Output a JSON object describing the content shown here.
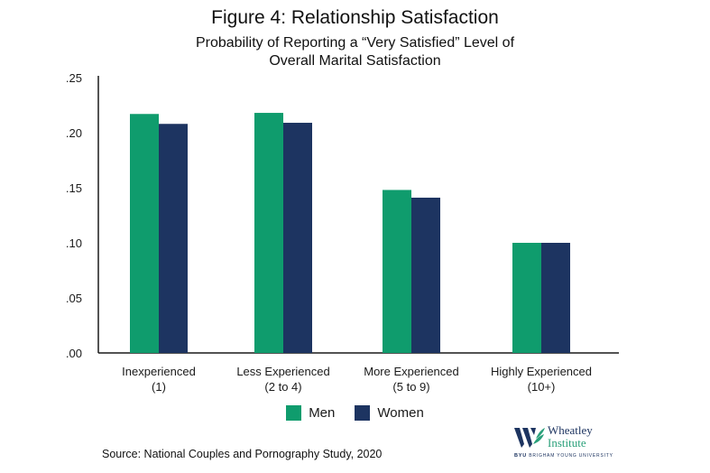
{
  "chart_data": {
    "type": "bar",
    "title": "Figure 4: Relationship Satisfaction",
    "subtitle_lines": [
      "Probability of Reporting a “Very Satisfied” Level of",
      "Overall Marital Satisfaction"
    ],
    "categories": [
      {
        "line1": "Inexperienced",
        "line2": "(1)"
      },
      {
        "line1": "Less Experienced",
        "line2": "(2 to 4)"
      },
      {
        "line1": "More Experienced",
        "line2": "(5 to 9)"
      },
      {
        "line1": "Highly Experienced",
        "line2": "(10+)"
      }
    ],
    "series": [
      {
        "name": "Men",
        "color": "#0f9c6d",
        "values": [
          0.217,
          0.218,
          0.148,
          0.1
        ]
      },
      {
        "name": "Women",
        "color": "#1d3461",
        "values": [
          0.208,
          0.209,
          0.141,
          0.1
        ]
      }
    ],
    "ylim": [
      0,
      0.25
    ],
    "yticks": [
      {
        "value": 0.0,
        "label": ".00"
      },
      {
        "value": 0.05,
        "label": ".05"
      },
      {
        "value": 0.1,
        "label": ".10"
      },
      {
        "value": 0.15,
        "label": ".15"
      },
      {
        "value": 0.2,
        "label": ".20"
      },
      {
        "value": 0.25,
        "label": ".25"
      }
    ],
    "grid": false,
    "legend_position": "bottom-center"
  },
  "source": "Source: National Couples and Pornography Study, 2020",
  "logo": {
    "name_line1": "Wheatley",
    "name_line2": "Institute",
    "tagline_bold": "BYU",
    "tagline": "BRIGHAM YOUNG UNIVERSITY",
    "colors": {
      "navy": "#1d3460",
      "green": "#2aa07a"
    }
  }
}
